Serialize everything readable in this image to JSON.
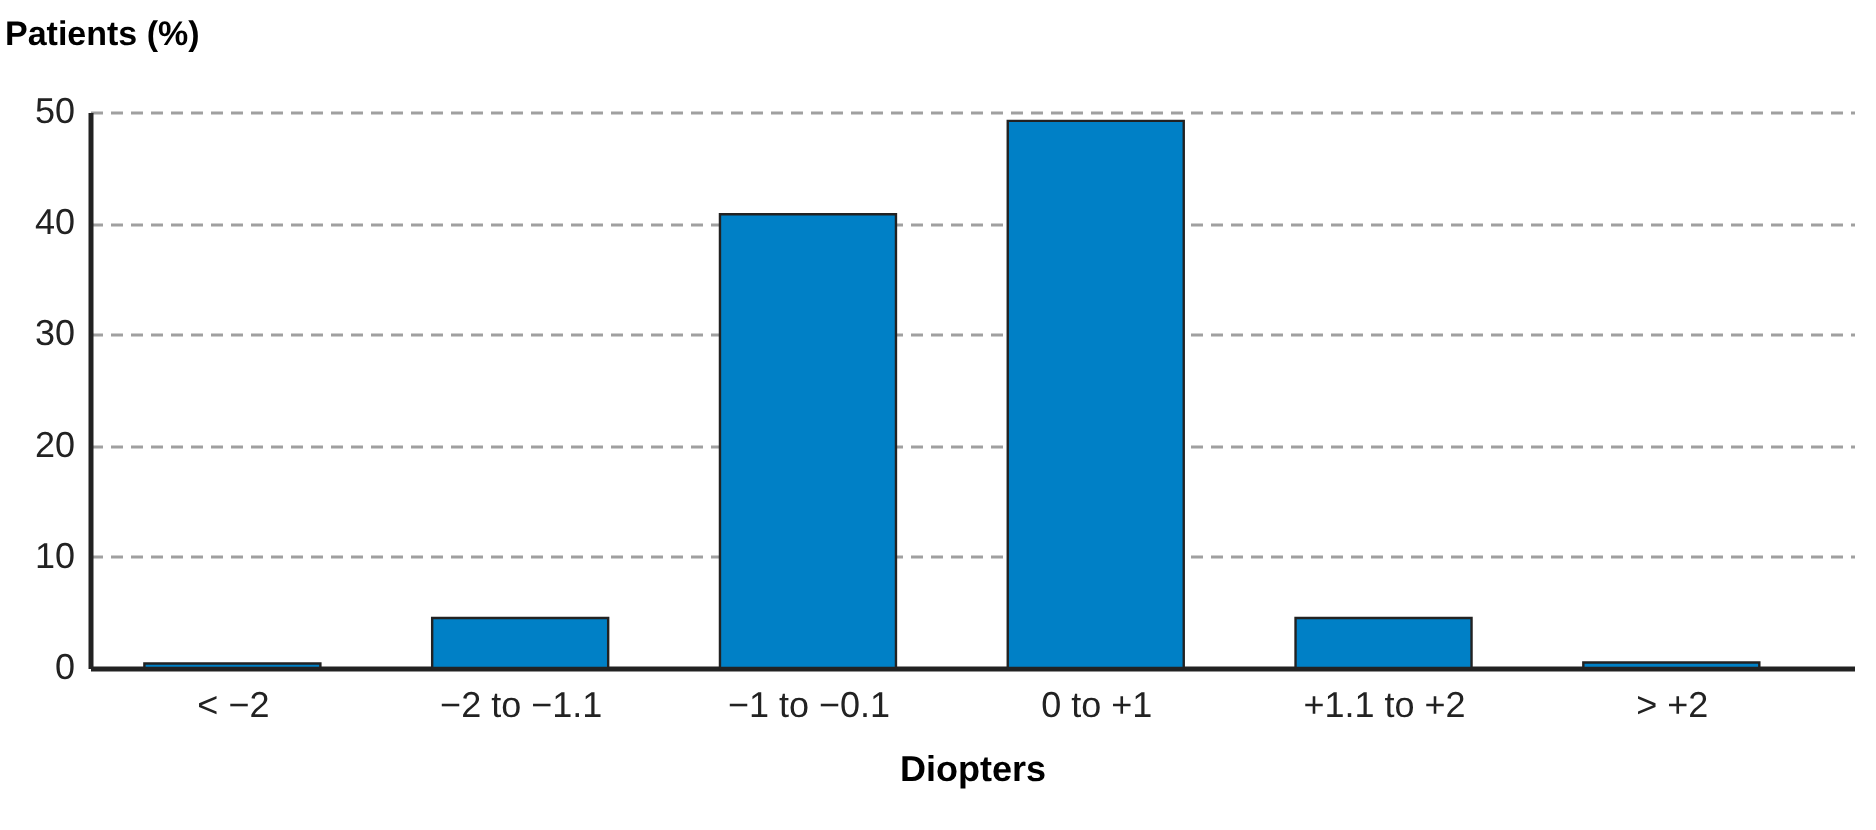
{
  "chart_data": {
    "type": "bar",
    "categories": [
      "< −2",
      "−2 to −1.1",
      "−1 to −0.1",
      "0 to +1",
      "+1.1 to +2",
      "> +2"
    ],
    "values": [
      0.4,
      4.5,
      40.8,
      49.2,
      4.5,
      0.5
    ],
    "color": "#0080c6",
    "xlabel": "Diopters",
    "ylabel": "Patients (%)",
    "ylim": [
      0,
      50
    ],
    "yticks": [
      0,
      10,
      20,
      30,
      40,
      50
    ],
    "grid": "y"
  }
}
